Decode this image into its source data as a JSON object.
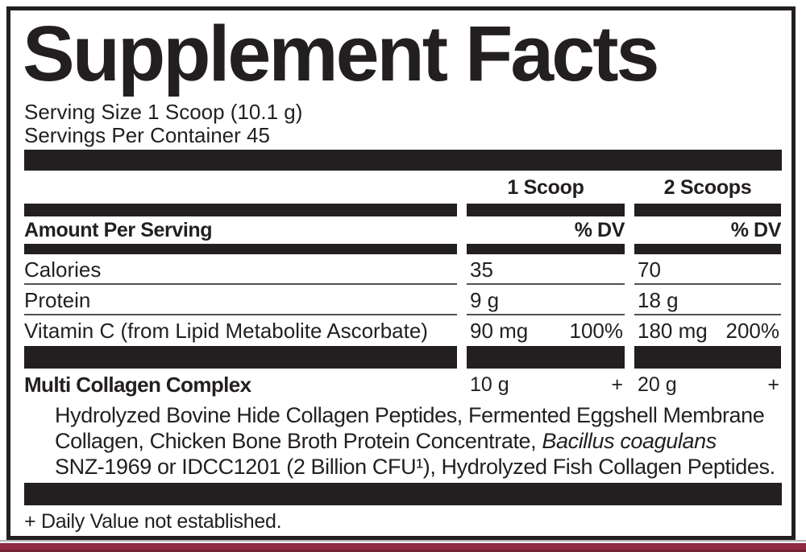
{
  "title": "Supplement Facts",
  "serving": {
    "size_line": "Serving Size 1 Scoop (10.1 g)",
    "per_container_line": "Servings Per Container 45"
  },
  "columns": {
    "scoop1_header": "1 Scoop",
    "scoop2_header": "2 Scoops",
    "amount_per_serving_label": "Amount Per Serving",
    "scoop1_dv_header": "% DV",
    "scoop2_dv_header": "% DV"
  },
  "nutrients": [
    {
      "name": "Calories",
      "scoop1_amount": "35",
      "scoop1_dv": "",
      "scoop2_amount": "70",
      "scoop2_dv": ""
    },
    {
      "name": "Protein",
      "scoop1_amount": "9 g",
      "scoop1_dv": "",
      "scoop2_amount": "18 g",
      "scoop2_dv": ""
    },
    {
      "name": "Vitamin C (from Lipid Metabolite Ascorbate)",
      "scoop1_amount": "90 mg",
      "scoop1_dv": "100%",
      "scoop2_amount": "180 mg",
      "scoop2_dv": "200%"
    }
  ],
  "blend": {
    "name": "Multi Collagen Complex",
    "scoop1_amount": "10 g",
    "scoop1_dv": "+",
    "scoop2_amount": "20 g",
    "scoop2_dv": "+",
    "description_line1": "Hydrolyzed Bovine Hide Collagen Peptides, Fermented Eggshell Membrane",
    "description_line2_regular": "Collagen, Chicken Bone Broth Protein Concentrate, ",
    "description_line2_italic": "Bacillus coagulans",
    "description_line3": "SNZ-1969 or IDCC1201 (2 Billion CFU¹), Hydrolyzed Fish Collagen Peptides."
  },
  "footnote": "+ Daily Value not established.",
  "colors": {
    "ink": "#231f20",
    "accent_maroon": "#8d2c42",
    "accent_maroon_dark": "#742235"
  }
}
